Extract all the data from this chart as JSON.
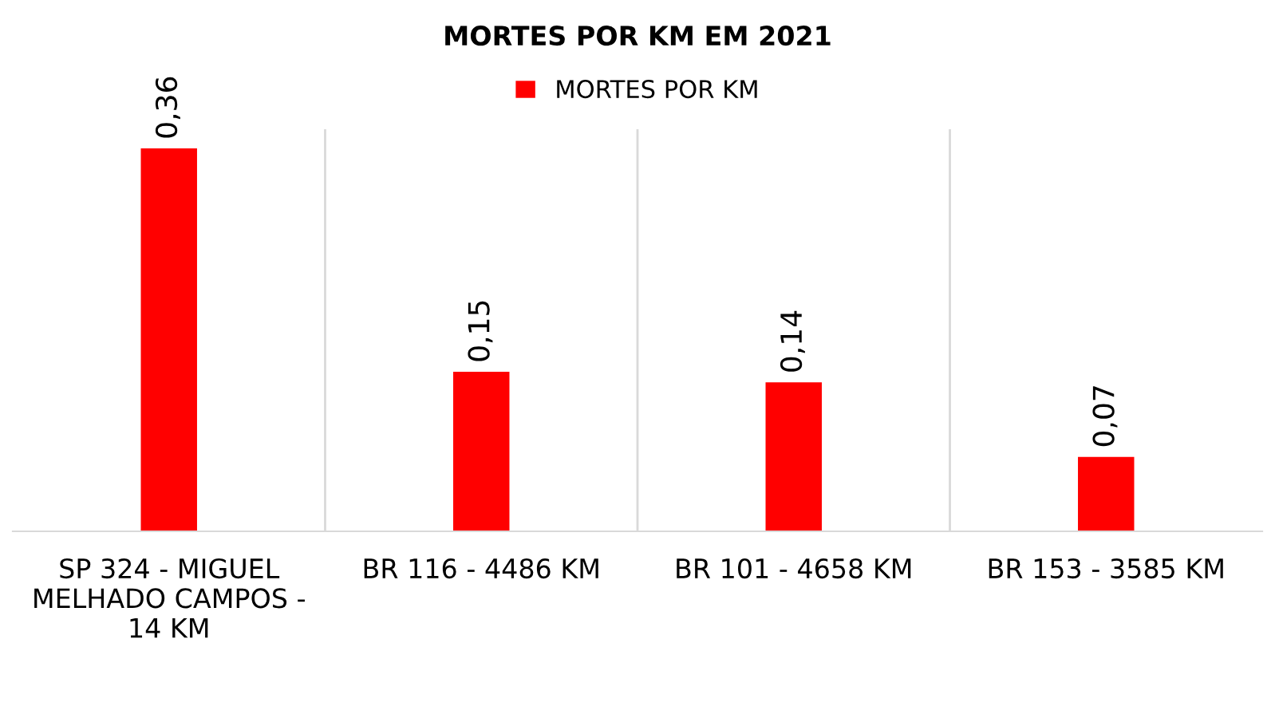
{
  "chart_data": {
    "type": "bar",
    "title": "MORTES POR KM EM 2021",
    "categories": [
      "SP 324 - MIGUEL MELHADO CAMPOS - 14 KM",
      "BR 116 - 4486 KM",
      "BR 101 - 4658 KM",
      "BR 153 - 3585 KM"
    ],
    "series": [
      {
        "name": "MORTES POR KM",
        "color": "#ff0000",
        "values": [
          0.36,
          0.15,
          0.14,
          0.07
        ],
        "value_labels": [
          "0,36",
          "0,15",
          "0,14",
          "0,07"
        ]
      }
    ],
    "grid": "x",
    "legend": "top"
  }
}
